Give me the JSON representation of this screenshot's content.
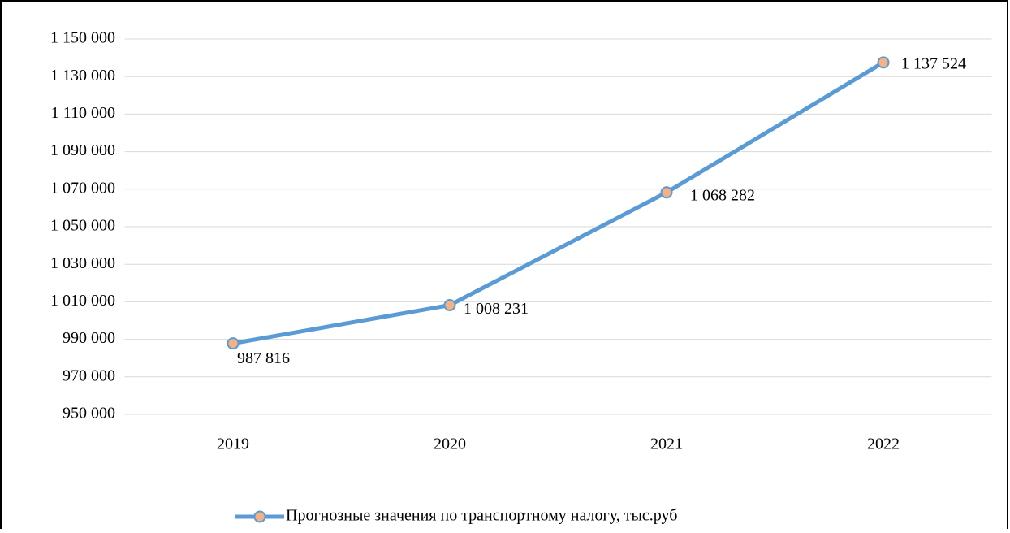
{
  "chart_data": {
    "type": "line",
    "categories": [
      "2019",
      "2020",
      "2021",
      "2022"
    ],
    "series": [
      {
        "name": "Прогнозные значения по транспортному налогу, тыс.руб",
        "color": "#5b9bd5",
        "marker_color": "#f4b183",
        "values": [
          987816,
          1008231,
          1068282,
          1137524
        ],
        "value_labels": [
          "987 816",
          "1 008 231",
          "1 068 282",
          "1 137 524"
        ]
      }
    ],
    "ylim": [
      950000,
      1150000
    ],
    "yticks": [
      {
        "value": 950000,
        "label": "950 000"
      },
      {
        "value": 970000,
        "label": "970 000"
      },
      {
        "value": 990000,
        "label": "990 000"
      },
      {
        "value": 1010000,
        "label": "1 010 000"
      },
      {
        "value": 1030000,
        "label": "1 030 000"
      },
      {
        "value": 1050000,
        "label": "1 050 000"
      },
      {
        "value": 1070000,
        "label": "1 070 000"
      },
      {
        "value": 1090000,
        "label": "1 090 000"
      },
      {
        "value": 1110000,
        "label": "1 110 000"
      },
      {
        "value": 1130000,
        "label": "1 130 000"
      },
      {
        "value": 1150000,
        "label": "1 150 000"
      }
    ],
    "grid": true,
    "legend": "bottom"
  }
}
